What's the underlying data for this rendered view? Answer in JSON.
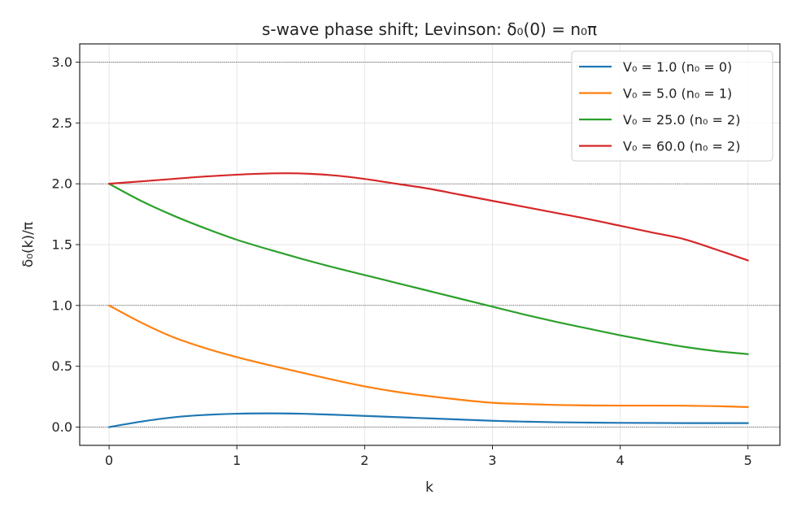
{
  "chart_data": {
    "type": "line",
    "title": "s-wave phase shift; Levinson: δ₀(0) = n₀π",
    "xlabel": "k",
    "ylabel": "δ₀(k)/π",
    "xlim": [
      -0.23,
      5.25
    ],
    "ylim": [
      -0.15,
      3.15
    ],
    "x_ticks": [
      0,
      1,
      2,
      3,
      4,
      5
    ],
    "y_ticks": [
      0.0,
      0.5,
      1.0,
      1.5,
      2.0,
      2.5,
      3.0
    ],
    "x_tick_labels": [
      "0",
      "1",
      "2",
      "3",
      "4",
      "5"
    ],
    "y_tick_labels": [
      "0.0",
      "0.5",
      "1.0",
      "1.5",
      "2.0",
      "2.5",
      "3.0"
    ],
    "grid": true,
    "reference_lines_y": [
      0,
      1,
      2,
      3
    ],
    "legend_position": "top-right",
    "x": [
      0,
      0.25,
      0.5,
      0.75,
      1,
      1.25,
      1.5,
      1.75,
      2,
      2.25,
      2.5,
      2.75,
      3,
      3.25,
      3.5,
      3.75,
      4,
      4.25,
      4.5,
      4.75,
      5
    ],
    "series": [
      {
        "name": "V₀ = 1.0  (n₀ = 0)",
        "color": "#1f77b4",
        "values": [
          0.0,
          0.045,
          0.08,
          0.1,
          0.11,
          0.113,
          0.11,
          0.102,
          0.092,
          0.082,
          0.072,
          0.062,
          0.052,
          0.045,
          0.04,
          0.037,
          0.035,
          0.034,
          0.033,
          0.033,
          0.033
        ]
      },
      {
        "name": "V₀ = 5.0  (n₀ = 1)",
        "color": "#ff7f0e",
        "values": [
          1.0,
          0.86,
          0.74,
          0.65,
          0.575,
          0.51,
          0.45,
          0.39,
          0.335,
          0.29,
          0.255,
          0.225,
          0.2,
          0.19,
          0.182,
          0.178,
          0.177,
          0.177,
          0.176,
          0.172,
          0.165
        ]
      },
      {
        "name": "V₀ = 25.0  (n₀ = 2)",
        "color": "#2ca02c",
        "values": [
          2.0,
          1.86,
          1.74,
          1.635,
          1.54,
          1.46,
          1.385,
          1.315,
          1.25,
          1.185,
          1.12,
          1.055,
          0.99,
          0.925,
          0.865,
          0.81,
          0.755,
          0.705,
          0.66,
          0.625,
          0.6
        ]
      },
      {
        "name": "V₀ = 60.0  (n₀ = 2)",
        "color": "#d62728",
        "values": [
          2.0,
          2.02,
          2.04,
          2.06,
          2.075,
          2.085,
          2.085,
          2.07,
          2.04,
          2.0,
          1.96,
          1.91,
          1.86,
          1.81,
          1.76,
          1.71,
          1.655,
          1.6,
          1.545,
          1.46,
          1.37
        ]
      }
    ]
  }
}
